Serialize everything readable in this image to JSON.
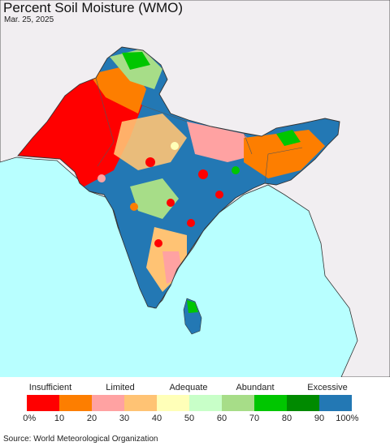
{
  "title": "Percent Soil Moisture (WMO)",
  "date": "Mar. 25, 2025",
  "source": "Source: World Meteorological Organization",
  "map": {
    "ocean_color": "#b8ffff",
    "outside_land_color": "#f1eef1",
    "border_color": "#333333"
  },
  "legend": {
    "categories": [
      "Insufficient",
      "Limited",
      "Adequate",
      "Abundant",
      "Excessive"
    ],
    "ticks": [
      "0%",
      "10",
      "20",
      "30",
      "40",
      "50",
      "60",
      "70",
      "80",
      "90",
      "100%"
    ],
    "colors": [
      "#ff0000",
      "#fd7e00",
      "#ffa2a2",
      "#ffc374",
      "#ffffb8",
      "#c8ffc8",
      "#a7dd88",
      "#00c600",
      "#008a00",
      "#2378b4"
    ]
  }
}
